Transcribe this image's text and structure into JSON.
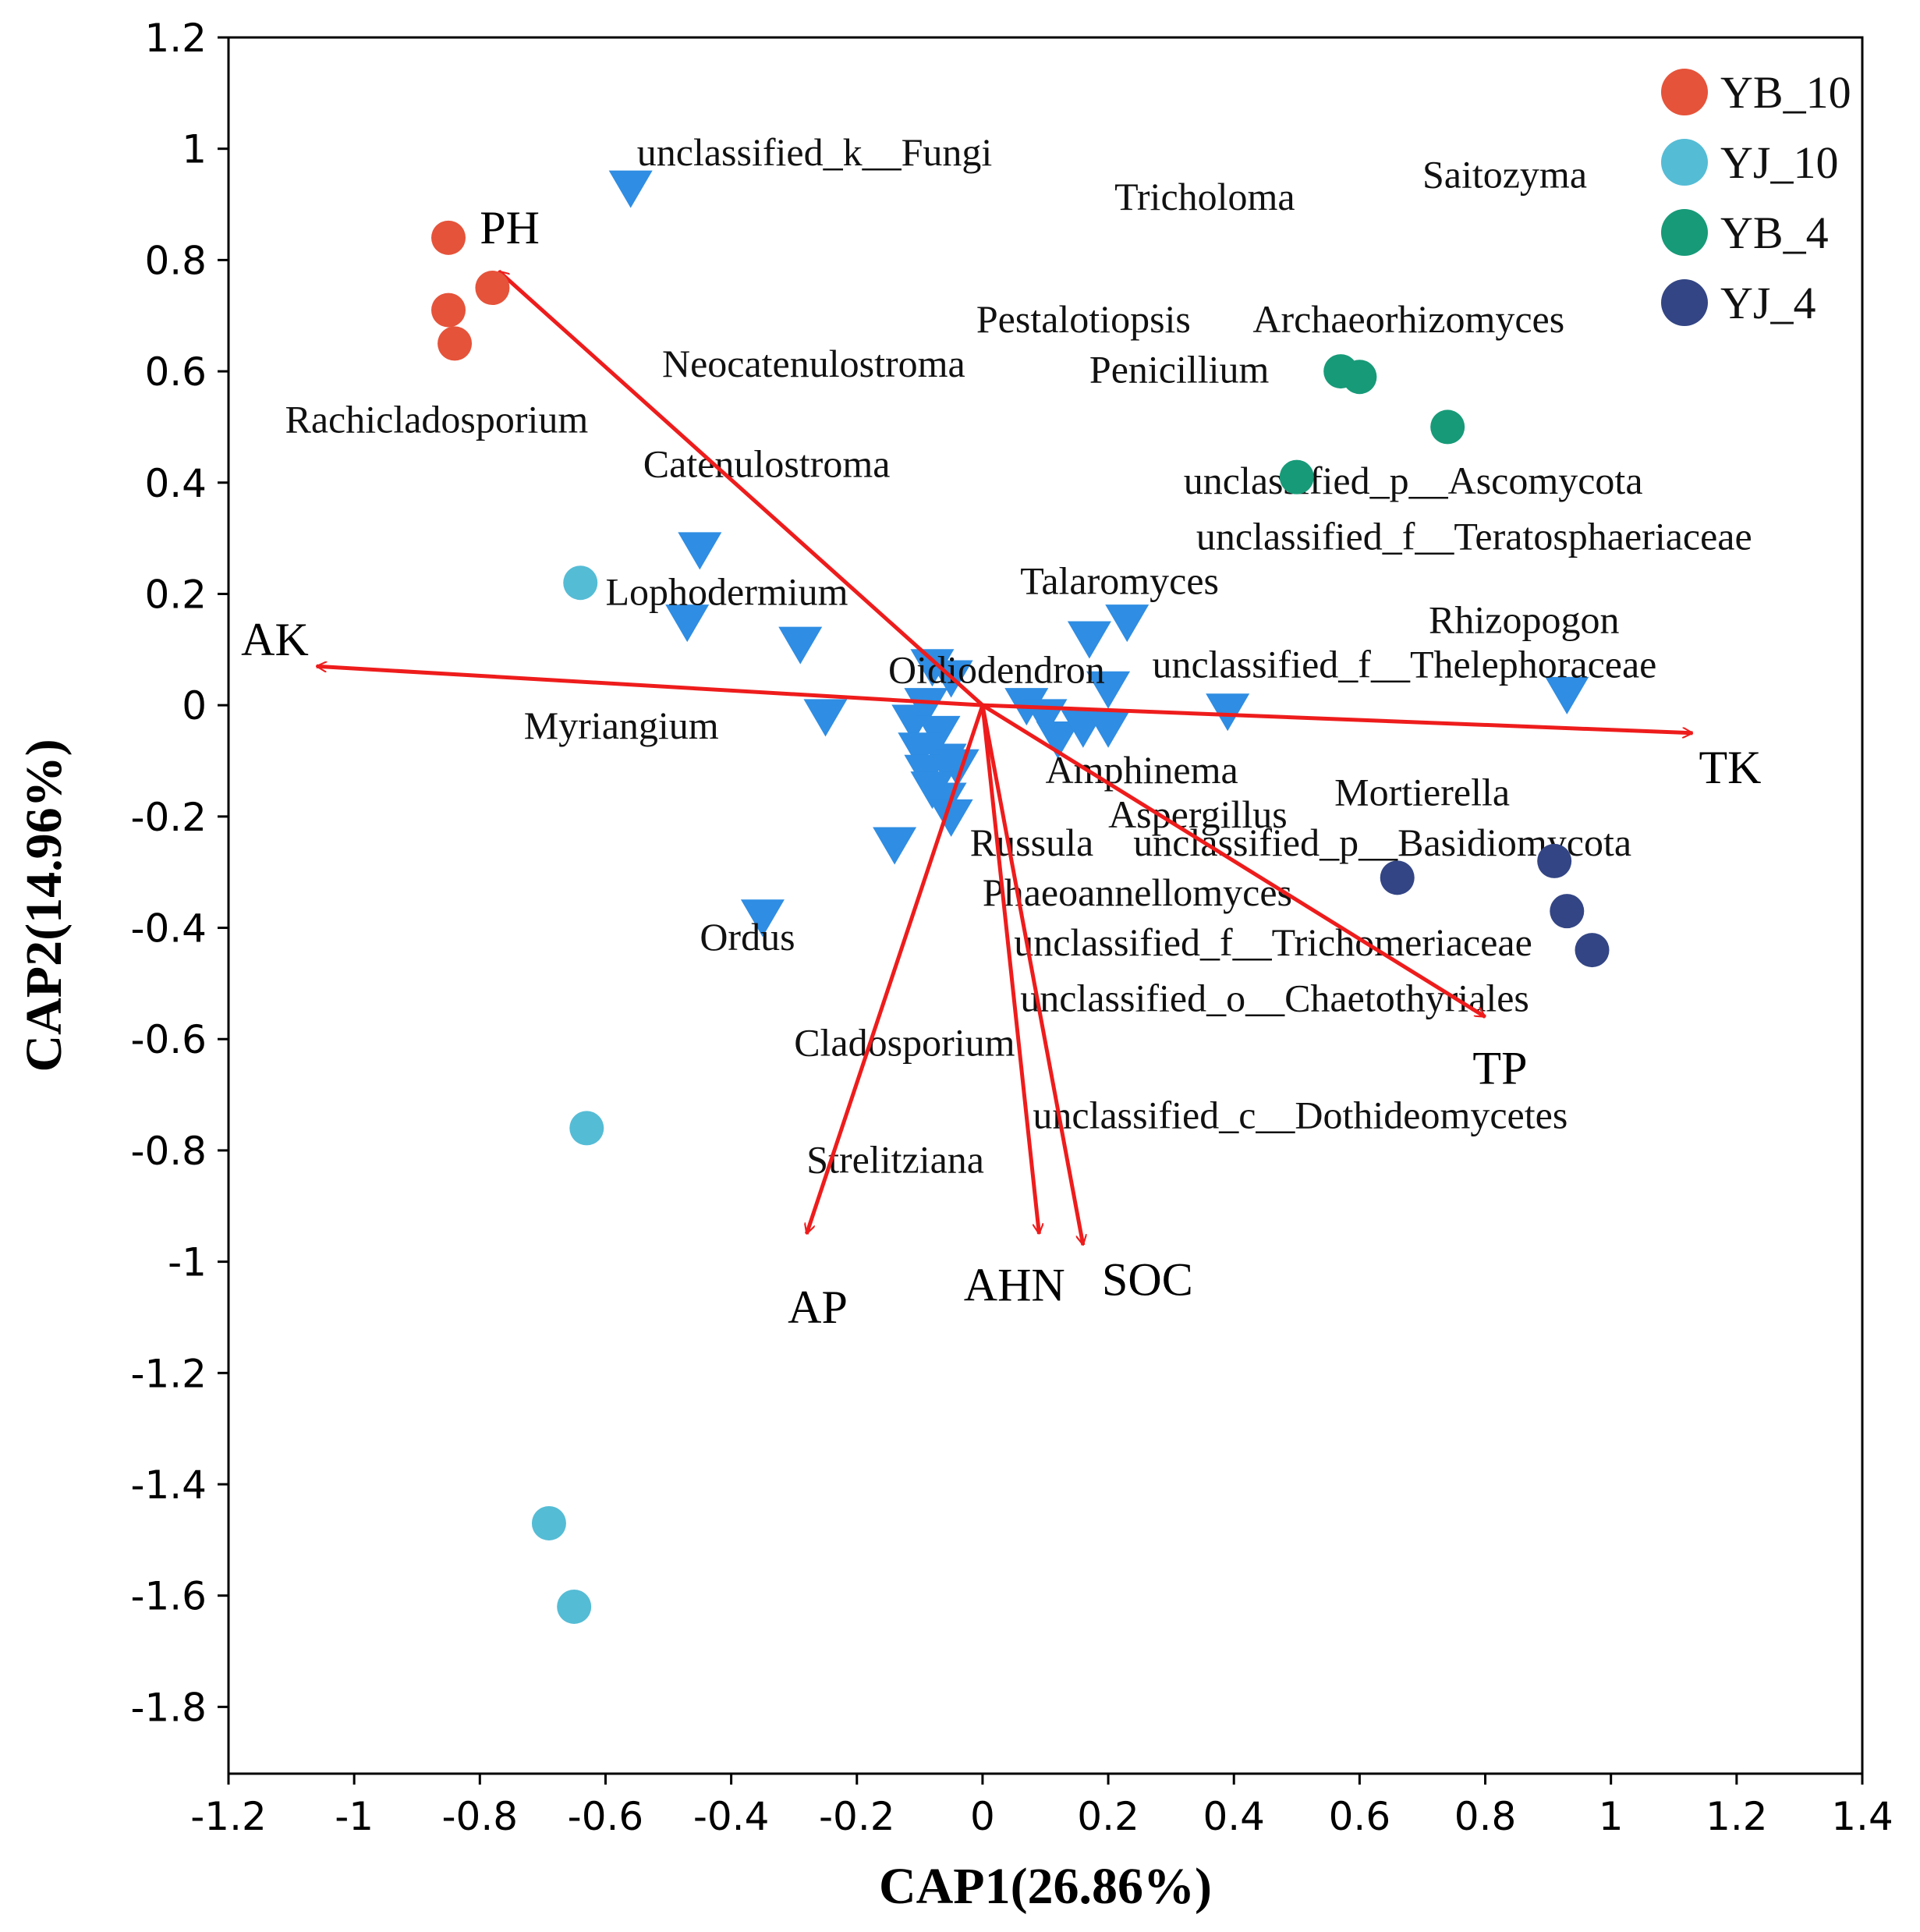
{
  "chart_data": {
    "type": "scatter",
    "xlabel": "CAP1(26.86%)",
    "ylabel": "CAP2(14.96%)",
    "xlim": [
      -1.2,
      1.4
    ],
    "ylim": [
      -1.92,
      1.2
    ],
    "x_ticks": [
      -1.2,
      -1,
      -0.8,
      -0.6,
      -0.4,
      -0.2,
      0,
      0.2,
      0.4,
      0.6,
      0.8,
      1,
      1.2,
      1.4
    ],
    "y_ticks": [
      1.2,
      1,
      0.8,
      0.6,
      0.4,
      0.2,
      0,
      -0.2,
      -0.4,
      -0.6,
      -0.8,
      -1,
      -1.2,
      -1.4,
      -1.6,
      -1.8
    ],
    "x_tick_labels": [
      "-1.2",
      "-1",
      "-0.8",
      "-0.6",
      "-0.4",
      "-0.2",
      "0",
      "0.2",
      "0.4",
      "0.6",
      "0.8",
      "1",
      "1.2",
      "1.4"
    ],
    "y_tick_labels": [
      "1.2",
      "1",
      "0.8",
      "0.6",
      "0.4",
      "0.2",
      "0",
      "-0.2",
      "-0.4",
      "-0.6",
      "-0.8",
      "-1",
      "-1.2",
      "-1.4",
      "-1.6",
      "-1.8"
    ],
    "grid": false,
    "legend_position": "top-right",
    "series": [
      {
        "name": "YB_10",
        "color": "#e5533a",
        "points": [
          [
            -0.85,
            0.84
          ],
          [
            -0.78,
            0.75
          ],
          [
            -0.85,
            0.71
          ],
          [
            -0.84,
            0.65
          ]
        ]
      },
      {
        "name": "YJ_10",
        "color": "#55bcd5",
        "points": [
          [
            -0.64,
            0.22
          ],
          [
            -0.63,
            -0.76
          ],
          [
            -0.69,
            -1.47
          ],
          [
            -0.65,
            -1.62
          ]
        ]
      },
      {
        "name": "YB_4",
        "color": "#179a78",
        "points": [
          [
            0.57,
            0.6
          ],
          [
            0.6,
            0.59
          ],
          [
            0.74,
            0.5
          ],
          [
            0.5,
            0.41
          ]
        ]
      },
      {
        "name": "YJ_4",
        "color": "#334584",
        "points": [
          [
            0.66,
            -0.31
          ],
          [
            0.91,
            -0.28
          ],
          [
            0.93,
            -0.37
          ],
          [
            0.97,
            -0.44
          ]
        ]
      }
    ],
    "species_marker_color": "#2f8de3",
    "species_points": [
      [
        -0.56,
        0.93
      ],
      [
        -0.45,
        0.28
      ],
      [
        -0.47,
        0.15
      ],
      [
        -0.29,
        0.11
      ],
      [
        -0.25,
        -0.02
      ],
      [
        -0.14,
        -0.25
      ],
      [
        -0.35,
        -0.38
      ],
      [
        -0.08,
        0.07
      ],
      [
        -0.05,
        0.05
      ],
      [
        -0.09,
        0.0
      ],
      [
        -0.11,
        -0.03
      ],
      [
        -0.07,
        -0.05
      ],
      [
        -0.1,
        -0.08
      ],
      [
        -0.06,
        -0.1
      ],
      [
        -0.09,
        -0.12
      ],
      [
        -0.04,
        -0.11
      ],
      [
        -0.08,
        -0.15
      ],
      [
        -0.06,
        -0.17
      ],
      [
        -0.05,
        -0.2
      ],
      [
        0.07,
        0.0
      ],
      [
        0.1,
        -0.02
      ],
      [
        0.12,
        -0.06
      ],
      [
        0.17,
        0.12
      ],
      [
        0.23,
        0.15
      ],
      [
        0.2,
        0.03
      ],
      [
        0.16,
        -0.04
      ],
      [
        0.2,
        -0.04
      ],
      [
        0.39,
        -0.01
      ],
      [
        0.93,
        0.02
      ]
    ],
    "species_labels": [
      {
        "text": "unclassified_k__Fungi",
        "x": -0.55,
        "y": 0.97
      },
      {
        "text": "Tricholoma",
        "x": 0.21,
        "y": 0.89
      },
      {
        "text": "Saitozyma",
        "x": 0.7,
        "y": 0.93
      },
      {
        "text": "Pestalotiopsis",
        "x": -0.01,
        "y": 0.67
      },
      {
        "text": "Archaeorhizomyces",
        "x": 0.43,
        "y": 0.67
      },
      {
        "text": "Neocatenulostroma",
        "x": -0.51,
        "y": 0.59
      },
      {
        "text": "Penicillium",
        "x": 0.17,
        "y": 0.58
      },
      {
        "text": "Rachicladosporium",
        "x": -1.11,
        "y": 0.49
      },
      {
        "text": "Catenulostroma",
        "x": -0.54,
        "y": 0.41
      },
      {
        "text": "unclassified_p__Ascomycota",
        "x": 0.32,
        "y": 0.38
      },
      {
        "text": "unclassified_f__Teratosphaeriaceae",
        "x": 0.34,
        "y": 0.28
      },
      {
        "text": "Lophodermium",
        "x": -0.6,
        "y": 0.18
      },
      {
        "text": "Talaromyces",
        "x": 0.06,
        "y": 0.2
      },
      {
        "text": "Rhizopogon",
        "x": 0.71,
        "y": 0.13
      },
      {
        "text": "Oidiodendron",
        "x": -0.15,
        "y": 0.04
      },
      {
        "text": "unclassified_f__Thelephoraceae",
        "x": 0.27,
        "y": 0.05
      },
      {
        "text": "Myriangium",
        "x": -0.73,
        "y": -0.06
      },
      {
        "text": "Amphinema",
        "x": 0.1,
        "y": -0.14
      },
      {
        "text": "Aspergillus",
        "x": 0.2,
        "y": -0.22
      },
      {
        "text": "Mortierella",
        "x": 0.56,
        "y": -0.18
      },
      {
        "text": "Russula",
        "x": -0.02,
        "y": -0.27
      },
      {
        "text": "unclassified_p__Basidiomycota",
        "x": 0.24,
        "y": -0.27
      },
      {
        "text": "Phaeoannellomyces",
        "x": 0.0,
        "y": -0.36
      },
      {
        "text": "Ordus",
        "x": -0.45,
        "y": -0.44
      },
      {
        "text": "unclassified_f__Trichomeriaceae",
        "x": 0.05,
        "y": -0.45
      },
      {
        "text": "unclassified_o__Chaetothyriales",
        "x": 0.06,
        "y": -0.55
      },
      {
        "text": "Cladosporium",
        "x": -0.3,
        "y": -0.63
      },
      {
        "text": "unclassified_c__Dothideomycetes",
        "x": 0.08,
        "y": -0.76
      },
      {
        "text": "Strelitziana",
        "x": -0.28,
        "y": -0.84
      }
    ],
    "vectors": [
      {
        "name": "PH",
        "x": -0.77,
        "y": 0.78,
        "label_x": -0.8,
        "label_y": 0.83
      },
      {
        "name": "AK",
        "x": -1.06,
        "y": 0.07,
        "label_x": -1.18,
        "label_y": 0.09
      },
      {
        "name": "TK",
        "x": 1.13,
        "y": -0.05,
        "label_x": 1.14,
        "label_y": -0.14
      },
      {
        "name": "TP",
        "x": 0.8,
        "y": -0.56,
        "label_x": 0.78,
        "label_y": -0.68
      },
      {
        "name": "AP",
        "x": -0.28,
        "y": -0.95,
        "label_x": -0.31,
        "label_y": -1.11
      },
      {
        "name": "AHN",
        "x": 0.09,
        "y": -0.95,
        "label_x": -0.03,
        "label_y": -1.07
      },
      {
        "name": "SOC",
        "x": 0.16,
        "y": -0.97,
        "label_x": 0.19,
        "label_y": -1.06
      }
    ],
    "vector_color": "#ee1c1c"
  }
}
